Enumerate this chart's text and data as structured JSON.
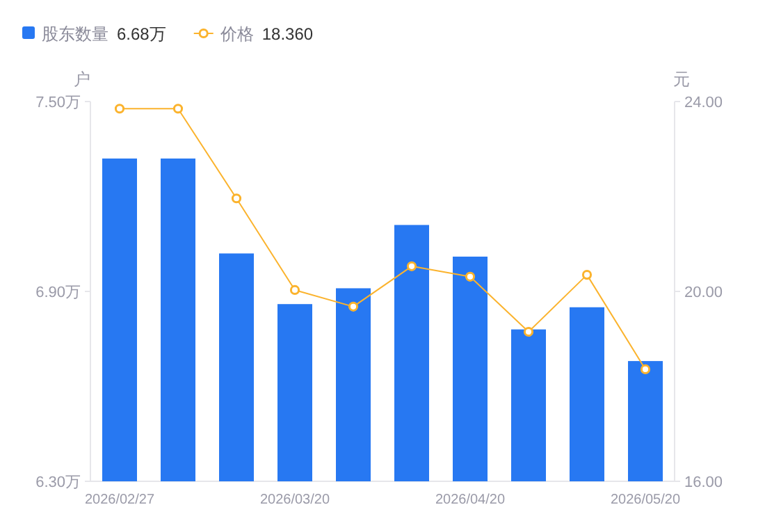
{
  "chart_data": {
    "type": "bar",
    "ylabel": "户",
    "y2label": "元",
    "categories": [
      "2026/02/27",
      null,
      null,
      "2026/03/20",
      null,
      null,
      "2026/04/20",
      null,
      null,
      "2026/05/20"
    ],
    "series": [
      {
        "name": "股东数量",
        "color": "#2778f2",
        "values": [
          7.32,
          7.32,
          7.02,
          6.86,
          6.91,
          7.11,
          7.01,
          6.78,
          6.85,
          6.68
        ]
      },
      {
        "name": "价格",
        "type": "line",
        "axis": "y2",
        "color": "#fbb32d",
        "marker": "circle",
        "values": [
          23.85,
          23.85,
          21.96,
          20.03,
          19.68,
          20.53,
          20.31,
          19.15,
          20.35,
          18.36
        ]
      }
    ],
    "ylim": [
      6.3,
      7.5
    ],
    "yticks": [
      {
        "value": 6.3,
        "label": "6.30万"
      },
      {
        "value": 6.9,
        "label": "6.90万"
      },
      {
        "value": 7.5,
        "label": "7.50万"
      }
    ],
    "y2lim": [
      16,
      24
    ],
    "y2ticks": [
      {
        "value": 16,
        "label": "16.00"
      },
      {
        "value": 20,
        "label": "20.00"
      },
      {
        "value": 24,
        "label": "24.00"
      }
    ],
    "annotations": [
      "6.68万",
      "18.360"
    ],
    "legend": "top left",
    "grid": false
  }
}
